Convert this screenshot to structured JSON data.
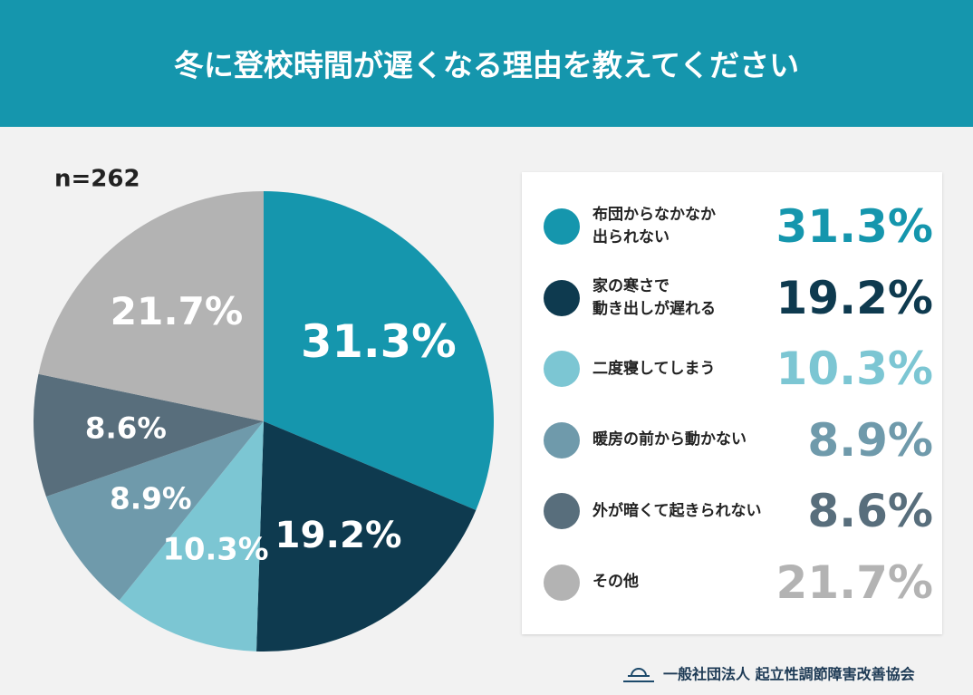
{
  "chart_data": {
    "type": "pie",
    "title": "冬に登校時間が遅くなる理由を教えてください",
    "annotation": "n=262",
    "categories": [
      "布団からなかなか\n出られない",
      "家の寒さで\n動き出しが遅れる",
      "二度寝してしまう",
      "暖房の前から動かない",
      "外が暗くて起きられない",
      "その他"
    ],
    "values": [
      31.3,
      19.2,
      10.3,
      8.9,
      8.6,
      21.7
    ],
    "value_labels": [
      "31.3%",
      "19.2%",
      "10.3%",
      "8.9%",
      "8.6%",
      "21.7%"
    ],
    "colors": [
      "#1596ad",
      "#0e3a4f",
      "#7cc6d3",
      "#6f9aab",
      "#586e7c",
      "#b3b3b3"
    ],
    "source": "一般社団法人 起立性調節障害改善協会"
  }
}
